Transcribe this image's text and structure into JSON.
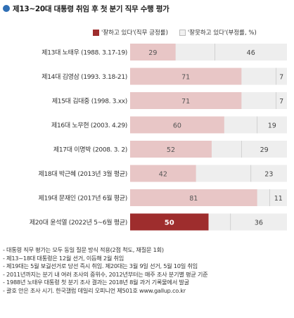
{
  "title": "제13~20대 대통령 취임 후 첫 분기 직무 수행 평가",
  "legend": {
    "positive": "'잘하고 있다'(직무 긍정률)",
    "negative": "'잘못하고 있다'(부정률, %)"
  },
  "colors": {
    "positive_bar": "#e8c6c6",
    "positive_bar_highlight": "#9e2d2d",
    "negative_bar": "#eeeeee",
    "title_dot": "#2f6fb5"
  },
  "chart_data": {
    "type": "bar",
    "stacked": true,
    "orientation": "horizontal",
    "categories": [
      "제13대 노태우 (1988. 3.17-19)",
      "제14대 김영삼 (1993. 3.18-21)",
      "제15대 김대중 (1998. 3.xx)",
      "제16대 노무현 (2003. 4.29)",
      "제17대 이명박 (2008. 3. 2)",
      "제18대 박근혜 (2013년 3월 평균)",
      "제19대 문재인 (2017년 6월 평균)",
      "제20대 윤석열 (2022년 5~6월 평균)"
    ],
    "series": [
      {
        "name": "'잘하고 있다'(직무 긍정률)",
        "values": [
          29,
          71,
          71,
          60,
          52,
          42,
          81,
          50
        ]
      },
      {
        "name": "'잘못하고 있다'(부정률, %)",
        "values": [
          46,
          7,
          7,
          19,
          29,
          23,
          11,
          36
        ]
      }
    ],
    "highlight_index": 7,
    "xlim": [
      0,
      100
    ],
    "grid": false
  },
  "notes": [
    "- 대통령 직무 평가는 모두 동일 질문 방식 적용(2점 척도, 재질문 1회)",
    "- 제13~18대 대통령은 12월 선거, 이듬해 2월 취임",
    "- 제19대는 5월 보궐선거로 당선 즉시 취임. 제20대는 3월 9일 선거, 5월 10일 취임",
    "- 2011년까지는 분기 내 여러 조사의 중위수, 2012년부터는 매주 조사 분기별 평균 기준",
    "- 1988년 노태우 대통령 첫 분기 조사 결과는 2018년 8월 과거 기록물에서 발굴",
    "- 괄호 안은 조사 시기. 한국갤럽 데일리 오피니언 제501호 www.gallup.co.kr"
  ]
}
